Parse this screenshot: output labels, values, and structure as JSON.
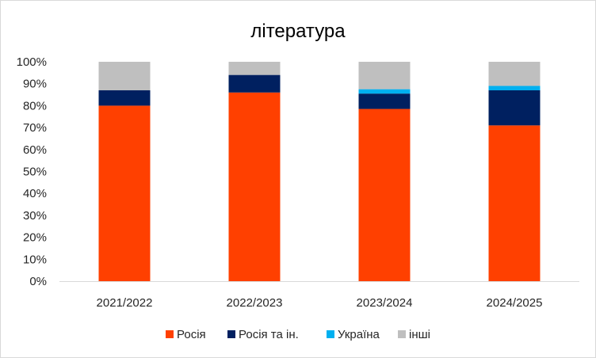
{
  "chart_data": {
    "type": "bar",
    "stacked": true,
    "title": "література",
    "categories": [
      "2021/2022",
      "2022/2023",
      "2023/2024",
      "2024/2025"
    ],
    "ylim": [
      0,
      1
    ],
    "yticks": [
      "0%",
      "10%",
      "20%",
      "30%",
      "40%",
      "50%",
      "60%",
      "70%",
      "80%",
      "90%",
      "100%"
    ],
    "grid": false,
    "legend_position": "bottom",
    "series": [
      {
        "name": "Росія",
        "color": "#ff4000",
        "values": [
          0.8,
          0.86,
          0.785,
          0.71
        ]
      },
      {
        "name": "Росія та ін.",
        "color": "#002060",
        "values": [
          0.07,
          0.08,
          0.07,
          0.16
        ]
      },
      {
        "name": "Україна",
        "color": "#00b0f0",
        "values": [
          0.0,
          0.0,
          0.02,
          0.02
        ]
      },
      {
        "name": "інші",
        "color": "#bfbfbf",
        "values": [
          0.13,
          0.06,
          0.125,
          0.11
        ]
      }
    ]
  }
}
